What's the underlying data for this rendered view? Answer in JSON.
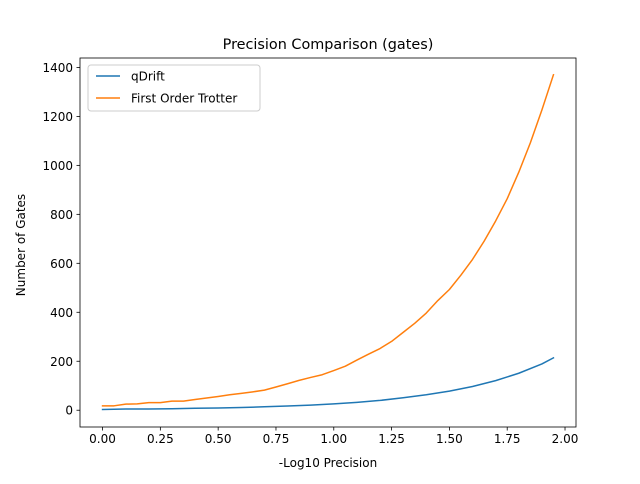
{
  "chart_data": {
    "type": "line",
    "title": "Precision Comparison (gates)",
    "xlabel": "-Log10 Precision",
    "ylabel": "Number of Gates",
    "xlim": [
      -0.0975,
      2.0475
    ],
    "ylim": [
      -68.5,
      1438.5
    ],
    "xticks": [
      0.0,
      0.25,
      0.5,
      0.75,
      1.0,
      1.25,
      1.5,
      1.75,
      2.0
    ],
    "xtick_labels": [
      "0.00",
      "0.25",
      "0.50",
      "0.75",
      "1.00",
      "1.25",
      "1.50",
      "1.75",
      "2.00"
    ],
    "yticks": [
      0,
      200,
      400,
      600,
      800,
      1000,
      1200,
      1400
    ],
    "ytick_labels": [
      "0",
      "200",
      "400",
      "600",
      "800",
      "1000",
      "1200",
      "1400"
    ],
    "grid": false,
    "legend": "top-left",
    "series": [
      {
        "name": "qDrift",
        "color": "#1f77b4",
        "x": [
          0.0,
          0.1,
          0.2,
          0.3,
          0.4,
          0.5,
          0.6,
          0.7,
          0.8,
          0.9,
          1.0,
          1.1,
          1.2,
          1.3,
          1.4,
          1.5,
          1.6,
          1.7,
          1.8,
          1.9,
          1.95
        ],
        "y": [
          3,
          5,
          5,
          6,
          8,
          9,
          11,
          14,
          17,
          21,
          26,
          32,
          40,
          51,
          63,
          78,
          97,
          121,
          151,
          189,
          214
        ]
      },
      {
        "name": "First Order Trotter",
        "color": "#ff7f0e",
        "x": [
          0.0,
          0.05,
          0.1,
          0.15,
          0.2,
          0.25,
          0.3,
          0.35,
          0.4,
          0.45,
          0.5,
          0.55,
          0.6,
          0.65,
          0.7,
          0.75,
          0.8,
          0.85,
          0.9,
          0.95,
          1.0,
          1.05,
          1.1,
          1.15,
          1.2,
          1.25,
          1.3,
          1.35,
          1.4,
          1.45,
          1.5,
          1.55,
          1.6,
          1.65,
          1.7,
          1.75,
          1.8,
          1.85,
          1.9,
          1.95
        ],
        "y": [
          18,
          18,
          25,
          26,
          31,
          31,
          37,
          37,
          44,
          50,
          56,
          63,
          69,
          75,
          82,
          95,
          108,
          122,
          134,
          145,
          162,
          180,
          205,
          229,
          252,
          281,
          318,
          355,
          397,
          448,
          493,
          552,
          616,
          690,
          773,
          864,
          972,
          1092,
          1226,
          1370
        ]
      }
    ]
  }
}
